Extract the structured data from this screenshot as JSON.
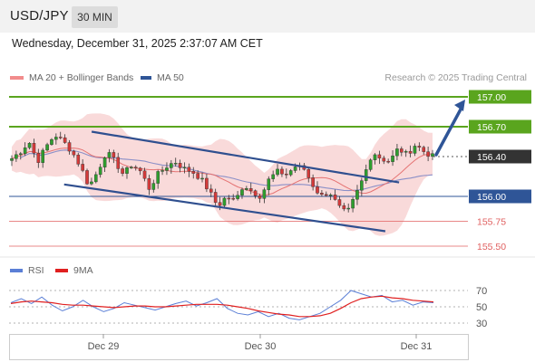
{
  "header": {
    "symbol": "USD/JPY",
    "timeframe": "30 MIN"
  },
  "datetime": "Wednesday, December 31, 2025 2:37:07 AM CET",
  "legend": {
    "ma20_label": "MA 20 + Bollinger Bands",
    "ma50_label": "MA 50",
    "rsi_label": "RSI",
    "rsi_ma_label": "9MA"
  },
  "source": "Research © 2025 Trading Central",
  "colors": {
    "candle_up": "#2e9e2e",
    "candle_down": "#d43a3a",
    "bollinger_fill": "#f8d3d3",
    "ma20": "#e57373",
    "ma50": "#8b8fc7",
    "channel": "#2f4f8f",
    "resistance": "#5aa51e",
    "pivot": "#2f5597",
    "support": "#e06060",
    "rsi": "#5b7fd6",
    "rsi_ma": "#e02020"
  },
  "chart_data": [
    {
      "type": "candlestick",
      "title": "USD/JPY 30 MIN",
      "x_ticks": [
        "Dec 29",
        "Dec 30",
        "Dec 31"
      ],
      "ylim": [
        155.35,
        157.2
      ],
      "levels": [
        {
          "value": 157.0,
          "label": "157.00",
          "kind": "target"
        },
        {
          "value": 156.7,
          "label": "156.70",
          "kind": "resistance"
        },
        {
          "value": 156.4,
          "label": "156.40",
          "kind": "last"
        },
        {
          "value": 156.0,
          "label": "156.00",
          "kind": "pivot"
        },
        {
          "value": 155.75,
          "label": "155.75",
          "kind": "support"
        },
        {
          "value": 155.5,
          "label": "155.50",
          "kind": "support"
        }
      ],
      "close_path": [
        156.38,
        156.45,
        156.55,
        156.35,
        156.5,
        156.62,
        156.55,
        156.45,
        156.3,
        156.1,
        156.25,
        156.45,
        156.35,
        156.22,
        156.32,
        156.25,
        156.08,
        156.22,
        156.3,
        156.35,
        156.28,
        156.25,
        156.18,
        156.05,
        155.9,
        156.0,
        155.95,
        156.12,
        156.05,
        156.0,
        156.18,
        156.25,
        156.22,
        156.3,
        156.28,
        156.12,
        156.0,
        156.05,
        155.9,
        155.82,
        156.0,
        156.2,
        156.45,
        156.38,
        156.35,
        156.48,
        156.42,
        156.52,
        156.45,
        156.4
      ],
      "channel": {
        "upper": [
          [
            0.18,
            156.65
          ],
          [
            0.85,
            156.14
          ]
        ],
        "lower": [
          [
            0.12,
            156.12
          ],
          [
            0.82,
            155.65
          ]
        ]
      },
      "forecast_arrow": {
        "from": 156.4,
        "to": 157.0
      }
    },
    {
      "type": "line",
      "title": "RSI",
      "yticks": [
        70,
        50,
        30
      ],
      "ylim": [
        20,
        80
      ],
      "series": [
        {
          "name": "RSI",
          "values": [
            55,
            60,
            54,
            62,
            52,
            45,
            50,
            58,
            50,
            44,
            48,
            55,
            52,
            49,
            46,
            50,
            54,
            57,
            51,
            55,
            60,
            48,
            42,
            40,
            44,
            38,
            42,
            36,
            34,
            38,
            42,
            50,
            58,
            70,
            66,
            62,
            64,
            56,
            58,
            52,
            56,
            55
          ]
        },
        {
          "name": "9MA",
          "values": [
            54,
            56,
            57,
            56,
            55,
            53,
            52,
            52,
            51,
            50,
            49,
            50,
            51,
            51,
            50,
            50,
            51,
            52,
            53,
            53,
            53,
            52,
            50,
            48,
            45,
            43,
            41,
            40,
            38,
            38,
            39,
            42,
            48,
            55,
            60,
            62,
            63,
            61,
            60,
            58,
            57,
            56
          ]
        }
      ]
    }
  ]
}
